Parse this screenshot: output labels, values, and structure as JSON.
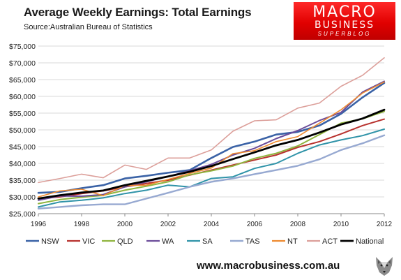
{
  "header": {
    "title": "Average Weekly Earnings: Total Earnings",
    "source": "Source:Australian Bureau of Statistics"
  },
  "logo": {
    "line1": "MACRO",
    "line2": "BUSINESS",
    "line3": "SUPERBLOG"
  },
  "footer": {
    "url": "www.macrobusiness.com.au",
    "icon": "wolf-logo-icon"
  },
  "chart_data": {
    "type": "line",
    "title": "Average Weekly Earnings: Total Earnings",
    "xlabel": "",
    "ylabel": "",
    "xlim": [
      1996,
      2012
    ],
    "ylim": [
      25000,
      75000
    ],
    "x_ticks": [
      {
        "value": 1996,
        "label": "1996"
      },
      {
        "value": 1998,
        "label": "1998"
      },
      {
        "value": 2000,
        "label": "2000"
      },
      {
        "value": 2002,
        "label": "2002"
      },
      {
        "value": 2004,
        "label": "2004"
      },
      {
        "value": 2006,
        "label": "2006"
      },
      {
        "value": 2008,
        "label": "2008"
      },
      {
        "value": 2010,
        "label": "2010"
      },
      {
        "value": 2012,
        "label": "2012"
      }
    ],
    "y_ticks": [
      {
        "value": 25000,
        "label": "$25,000"
      },
      {
        "value": 30000,
        "label": "$30,000"
      },
      {
        "value": 35000,
        "label": "$35,000"
      },
      {
        "value": 40000,
        "label": "$40,000"
      },
      {
        "value": 45000,
        "label": "$45,000"
      },
      {
        "value": 50000,
        "label": "$50,000"
      },
      {
        "value": 55000,
        "label": "$55,000"
      },
      {
        "value": 60000,
        "label": "$60,000"
      },
      {
        "value": 65000,
        "label": "$65,000"
      },
      {
        "value": 70000,
        "label": "$70,000"
      },
      {
        "value": 75000,
        "label": "$75,000"
      }
    ],
    "grid": "horizontal",
    "legend": "bottom",
    "x": [
      1996,
      1997,
      1998,
      1999,
      2000,
      2001,
      2002,
      2003,
      2004,
      2005,
      2006,
      2007,
      2008,
      2009,
      2010,
      2011,
      2012
    ],
    "series": [
      {
        "name": "NSW",
        "color": "#3a62a6",
        "width": 2.6,
        "values": [
          31200,
          31500,
          32600,
          33500,
          35500,
          36300,
          37200,
          38000,
          41600,
          44900,
          46500,
          48600,
          49400,
          51300,
          54800,
          59700,
          64000
        ]
      },
      {
        "name": "VIC",
        "color": "#b8322e",
        "width": 2.0,
        "values": [
          29500,
          30000,
          31000,
          31800,
          33000,
          34000,
          35000,
          36500,
          38000,
          39500,
          41000,
          42500,
          44800,
          46500,
          48800,
          51300,
          53200
        ]
      },
      {
        "name": "QLD",
        "color": "#8fb43e",
        "width": 2.0,
        "values": [
          28000,
          29200,
          29900,
          30500,
          32000,
          33200,
          34500,
          36600,
          37800,
          39200,
          41500,
          43000,
          45200,
          48600,
          52000,
          53300,
          55500
        ]
      },
      {
        "name": "WA",
        "color": "#6b4c9a",
        "width": 2.0,
        "values": [
          29000,
          30300,
          30200,
          30700,
          33000,
          34500,
          36100,
          37800,
          39700,
          42500,
          44500,
          47400,
          49800,
          52800,
          55200,
          61300,
          64500
        ]
      },
      {
        "name": "SA",
        "color": "#2f93a8",
        "width": 2.0,
        "values": [
          27000,
          28500,
          29000,
          29700,
          31000,
          32000,
          33500,
          33000,
          35500,
          36000,
          38500,
          40000,
          43000,
          45500,
          47000,
          48300,
          50200
        ]
      },
      {
        "name": "TAS",
        "color": "#97a9d1",
        "width": 2.4,
        "values": [
          26500,
          27000,
          27500,
          27800,
          27800,
          29500,
          31200,
          33000,
          34500,
          35500,
          36800,
          38000,
          39300,
          41200,
          44000,
          46000,
          48400
        ]
      },
      {
        "name": "NT",
        "color": "#ee8a2f",
        "width": 1.6,
        "values": [
          30000,
          31800,
          32300,
          30400,
          33400,
          33500,
          35200,
          37000,
          38600,
          42900,
          43800,
          46500,
          48000,
          52000,
          56000,
          61000,
          64300
        ]
      },
      {
        "name": "ACT",
        "color": "#dc9f9a",
        "width": 1.6,
        "values": [
          34300,
          35500,
          36800,
          35700,
          39500,
          38200,
          41600,
          41600,
          44000,
          49600,
          52700,
          53000,
          56500,
          58000,
          63000,
          66300,
          71500
        ]
      },
      {
        "name": "National",
        "color": "#000000",
        "width": 2.8,
        "values": [
          29500,
          30500,
          31300,
          31900,
          33500,
          34800,
          36100,
          37500,
          39200,
          41300,
          43300,
          45400,
          47000,
          49200,
          51600,
          53400,
          56000
        ]
      }
    ]
  }
}
